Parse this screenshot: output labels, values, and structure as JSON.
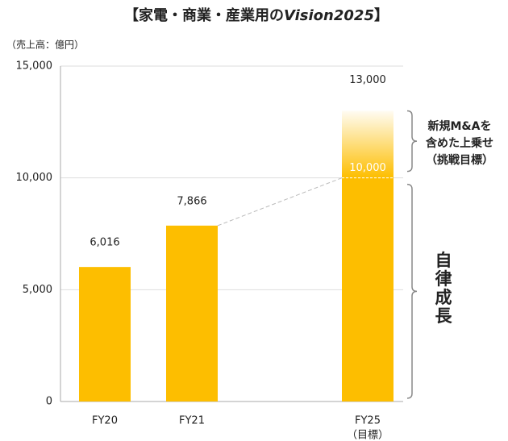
{
  "chart_data": {
    "type": "bar",
    "title": [
      "【家電・商業・産業用の",
      "Vision2025",
      "】"
    ],
    "y_label": "（売上高：億円）",
    "categories": [
      "FY20",
      "FY21",
      "FY25"
    ],
    "category_notes": [
      null,
      null,
      "（目標）"
    ],
    "values": [
      6016,
      7866,
      13000
    ],
    "value_labels": [
      "6,016",
      "7,866",
      "13,000"
    ],
    "color": "#fdbe00",
    "organic_target": {
      "value": 10000,
      "label": "10,000"
    },
    "annotations": {
      "stretch": [
        "新規M&Aを",
        "含めた上乗せ",
        "（挑戦目標）"
      ],
      "organic": "自律成長"
    },
    "ylim": [
      0,
      15000
    ],
    "yticks": [
      0,
      {
        "value": 5000,
        "label": "5,000"
      },
      {
        "value": 10000,
        "label": "10,000"
      },
      {
        "value": 15000,
        "label": "15,000"
      }
    ],
    "grid": true
  }
}
